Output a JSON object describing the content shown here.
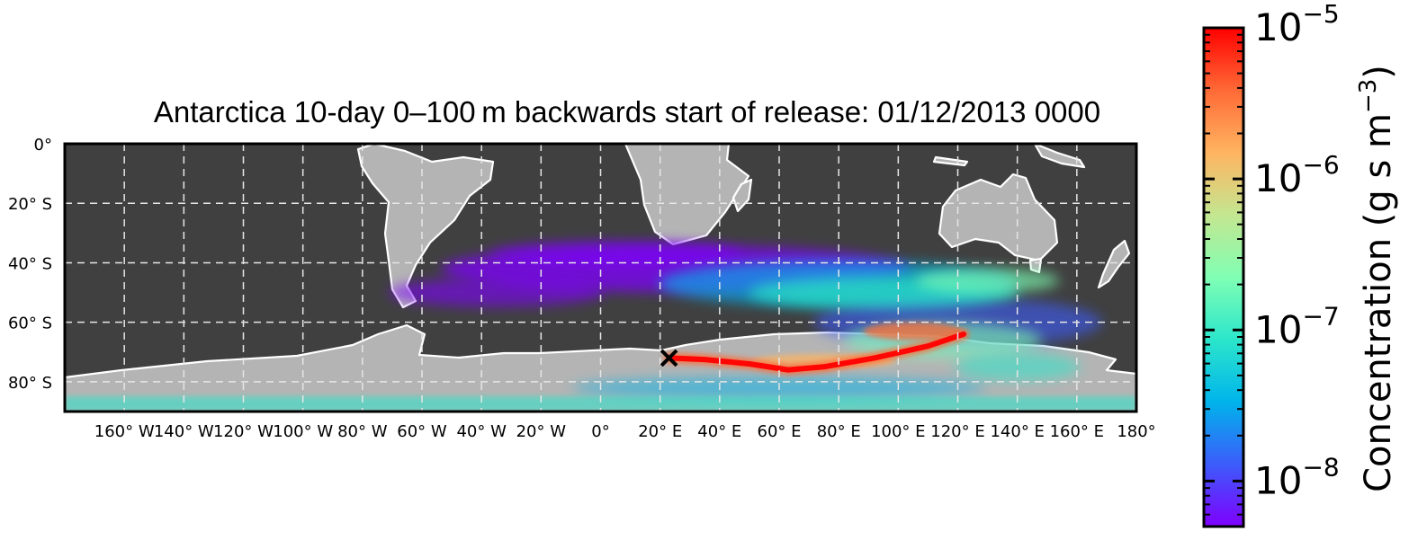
{
  "chart_data": {
    "type": "heatmap",
    "title": "Antarctica 10-day 0–100 m backwards start of release: 01/12/2013 0000",
    "projection": "plate-carree",
    "lon_range": [
      -180,
      180
    ],
    "lat_range": [
      -90,
      0
    ],
    "x_ticks": [
      "160° W",
      "140° W",
      "120° W",
      "100° W",
      "80° W",
      "60° W",
      "40° W",
      "20° W",
      "0°",
      "20° E",
      "40° E",
      "60° E",
      "80° E",
      "100° E",
      "120° E",
      "140° E",
      "160° E",
      "180°"
    ],
    "x_tick_values": [
      -160,
      -140,
      -120,
      -100,
      -80,
      -60,
      -40,
      -20,
      0,
      20,
      40,
      60,
      80,
      100,
      120,
      140,
      160,
      180
    ],
    "y_ticks": [
      "0°",
      "20° S",
      "40° S",
      "60° S",
      "80° S"
    ],
    "y_tick_values": [
      0,
      -20,
      -40,
      -60,
      -80
    ],
    "grid": true,
    "release_marker": {
      "symbol": "×",
      "lon": 23,
      "lat": -72
    },
    "plume": {
      "core": [
        [
          23,
          -72
        ],
        [
          35,
          -72.5
        ],
        [
          50,
          -74
        ],
        [
          63,
          -76
        ],
        [
          75,
          -75
        ],
        [
          92,
          -72
        ],
        [
          110,
          -68
        ],
        [
          122,
          -64
        ]
      ],
      "outer_extent_lon": [
        -62,
        165
      ],
      "outer_extent_lat": [
        -88,
        -30
      ]
    },
    "colorbar": {
      "label": "Concentration (g s m",
      "label_superscript": "−3",
      "label_close": ")",
      "scale": "log",
      "range": [
        5e-09,
        1e-05
      ],
      "ticks": [
        {
          "mantissa": "10",
          "exponent": "−8",
          "value": 1e-08
        },
        {
          "mantissa": "10",
          "exponent": "−7",
          "value": 1e-07
        },
        {
          "mantissa": "10",
          "exponent": "−6",
          "value": 1e-06
        },
        {
          "mantissa": "10",
          "exponent": "−5",
          "value": 1e-05
        }
      ],
      "colormap": "rainbow",
      "colors": [
        "#7f00ff",
        "#3c5cfb",
        "#00b4eb",
        "#2ce6cb",
        "#80ffb4",
        "#c4e690",
        "#ffb461",
        "#ff6a36",
        "#ff0000"
      ]
    }
  },
  "colors": {
    "ocean": "#404040",
    "land": "#b4b4b4",
    "coastline": "#ffffff",
    "grid": "#e6e6e6"
  }
}
